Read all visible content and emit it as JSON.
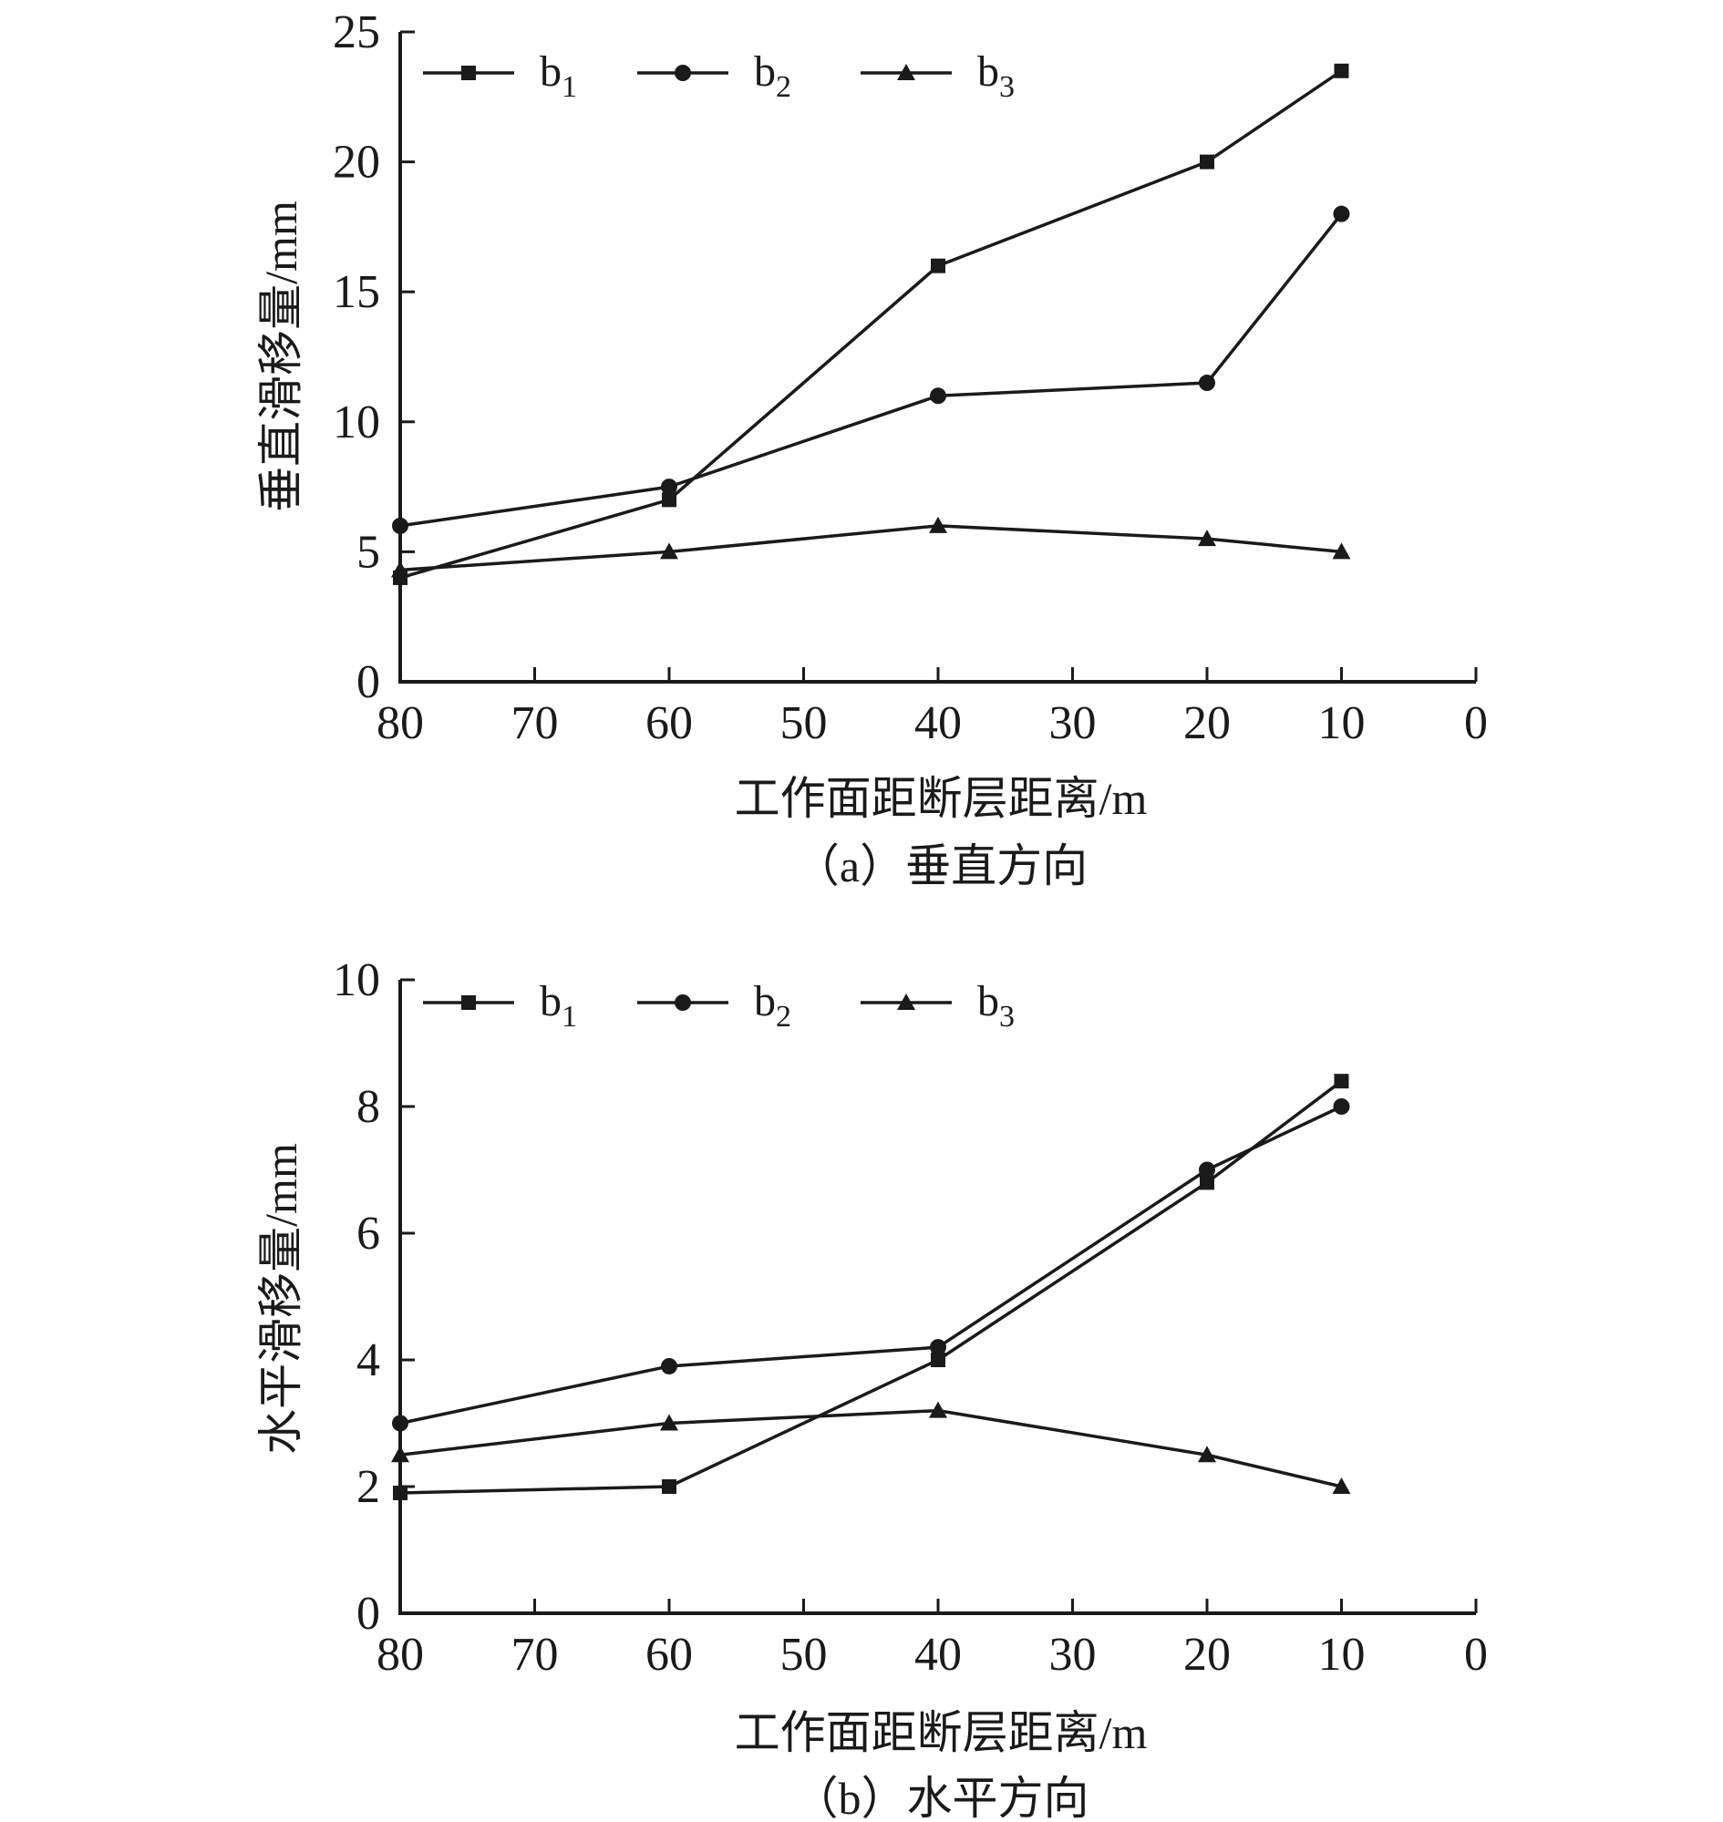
{
  "chart_data": [
    {
      "type": "line",
      "caption": "（a）垂直方向",
      "xlabel": "工作面距断层距离/m",
      "ylabel": "垂直滑移量/mm",
      "x_ticks": [
        "80",
        "70",
        "60",
        "50",
        "40",
        "30",
        "20",
        "10",
        "0"
      ],
      "y_ticks": [
        "0",
        "5",
        "10",
        "15",
        "20",
        "25"
      ],
      "xlim": [
        80,
        0
      ],
      "ylim": [
        0,
        25
      ],
      "x": [
        80,
        60,
        40,
        20,
        10
      ],
      "legend_position": "top-left",
      "series": [
        {
          "name": "b",
          "sub": "1",
          "marker": "square",
          "values": [
            4,
            7,
            16,
            20,
            23.5
          ]
        },
        {
          "name": "b",
          "sub": "2",
          "marker": "circle",
          "values": [
            6,
            7.5,
            11,
            11.5,
            18
          ]
        },
        {
          "name": "b",
          "sub": "3",
          "marker": "triangle",
          "values": [
            4.3,
            5,
            6,
            5.5,
            5
          ]
        }
      ]
    },
    {
      "type": "line",
      "caption": "（b）水平方向",
      "xlabel": "工作面距断层距离/m",
      "ylabel": "水平滑移量/mm",
      "x_ticks": [
        "80",
        "70",
        "60",
        "50",
        "40",
        "30",
        "20",
        "10",
        "0"
      ],
      "y_ticks": [
        "0",
        "2",
        "4",
        "6",
        "8",
        "10"
      ],
      "xlim": [
        80,
        0
      ],
      "ylim": [
        0,
        10
      ],
      "x": [
        80,
        60,
        40,
        20,
        10
      ],
      "legend_position": "top-left",
      "series": [
        {
          "name": "b",
          "sub": "1",
          "marker": "square",
          "values": [
            1.9,
            2,
            4,
            6.8,
            8.4
          ]
        },
        {
          "name": "b",
          "sub": "2",
          "marker": "circle",
          "values": [
            3,
            3.9,
            4.2,
            7,
            8
          ]
        },
        {
          "name": "b",
          "sub": "3",
          "marker": "triangle",
          "values": [
            2.5,
            3,
            3.2,
            2.5,
            2
          ]
        }
      ]
    }
  ],
  "style": {
    "line_color": "#1a1a1a"
  }
}
